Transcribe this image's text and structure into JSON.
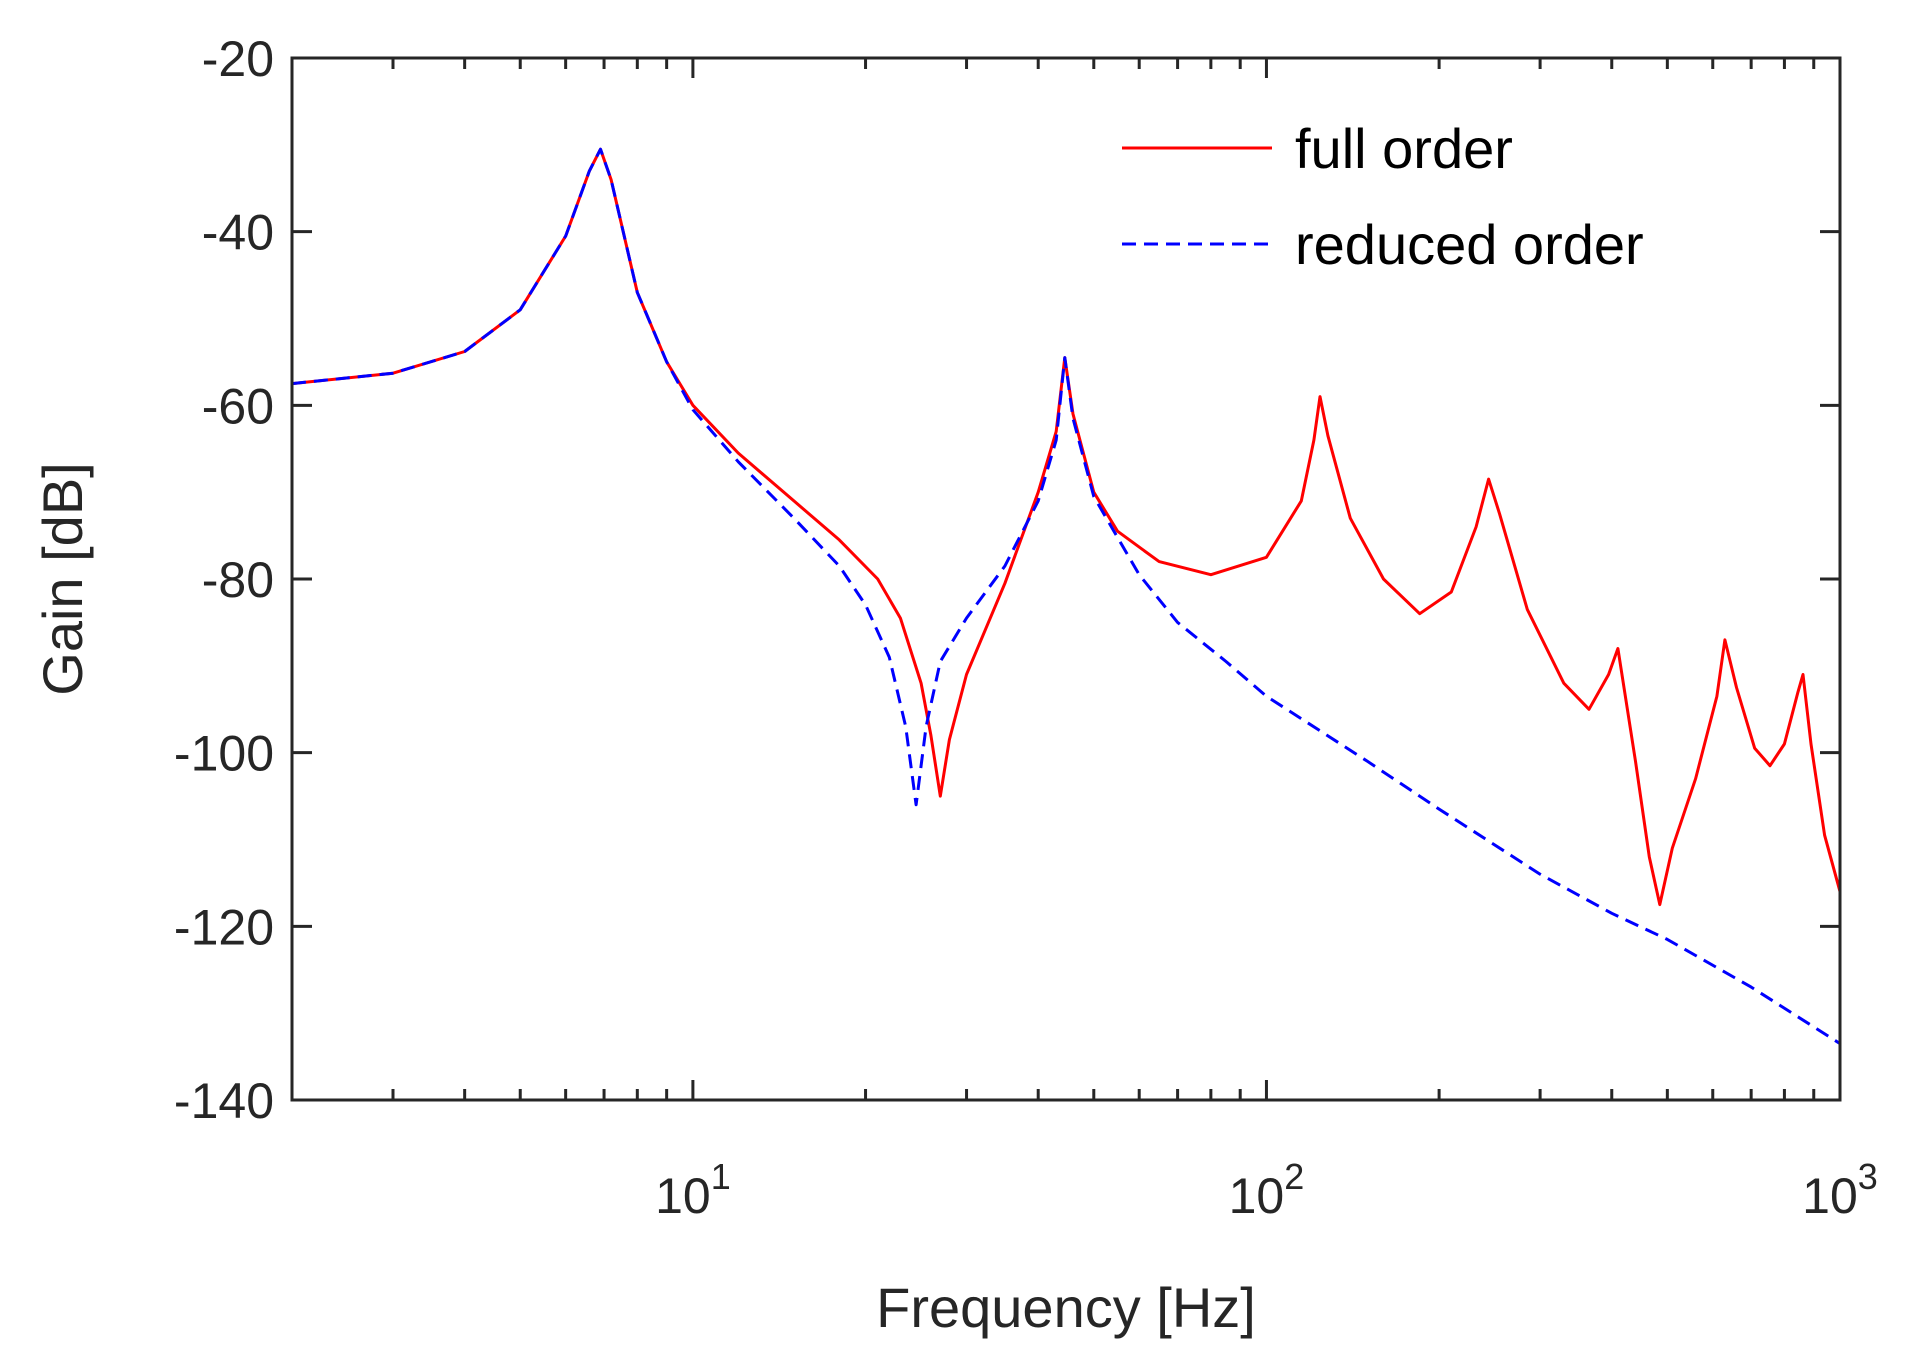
{
  "chart_data": {
    "type": "line",
    "xscale": "log",
    "xlim": [
      2,
      1000
    ],
    "ylim": [
      -140,
      -20
    ],
    "xlabel": "Frequency [Hz]",
    "ylabel": "Gain [dB]",
    "y_ticks": [
      {
        "value": -20,
        "label": "-20"
      },
      {
        "value": -40,
        "label": "-40"
      },
      {
        "value": -60,
        "label": "-60"
      },
      {
        "value": -80,
        "label": "-80"
      },
      {
        "value": -100,
        "label": "-100"
      },
      {
        "value": -120,
        "label": "-120"
      },
      {
        "value": -140,
        "label": "-140"
      }
    ],
    "x_major_ticks": [
      {
        "value": 10,
        "base": "10",
        "exp": "1"
      },
      {
        "value": 100,
        "base": "10",
        "exp": "2"
      },
      {
        "value": 1000,
        "base": "10",
        "exp": "3"
      }
    ],
    "legend_position": "top-right",
    "series": [
      {
        "name": "full order",
        "color": "#ff0000",
        "dash": "solid",
        "points": [
          [
            2.0,
            -57.5
          ],
          [
            3.0,
            -56.3
          ],
          [
            4.0,
            -53.8
          ],
          [
            5.0,
            -49.0
          ],
          [
            6.0,
            -40.5
          ],
          [
            6.6,
            -33.0
          ],
          [
            6.9,
            -30.5
          ],
          [
            7.2,
            -34.0
          ],
          [
            8.0,
            -47.0
          ],
          [
            9.0,
            -55.0
          ],
          [
            10.0,
            -60.0
          ],
          [
            12.0,
            -65.5
          ],
          [
            15.0,
            -71.0
          ],
          [
            18.0,
            -75.5
          ],
          [
            21.0,
            -80.0
          ],
          [
            23.0,
            -84.5
          ],
          [
            25.0,
            -92.0
          ],
          [
            26.0,
            -98.0
          ],
          [
            27.0,
            -105.0
          ],
          [
            28.0,
            -98.5
          ],
          [
            30.0,
            -91.0
          ],
          [
            35.0,
            -80.5
          ],
          [
            40.0,
            -70.0
          ],
          [
            43.0,
            -63.0
          ],
          [
            44.5,
            -54.5
          ],
          [
            46.0,
            -61.0
          ],
          [
            50.0,
            -70.0
          ],
          [
            55.0,
            -74.5
          ],
          [
            65.0,
            -78.0
          ],
          [
            80.0,
            -79.5
          ],
          [
            100.0,
            -77.5
          ],
          [
            115.0,
            -71.0
          ],
          [
            121.0,
            -64.0
          ],
          [
            124.0,
            -59.0
          ],
          [
            128.0,
            -63.5
          ],
          [
            140.0,
            -73.0
          ],
          [
            160.0,
            -80.0
          ],
          [
            185.0,
            -84.0
          ],
          [
            210.0,
            -81.5
          ],
          [
            232.0,
            -74.0
          ],
          [
            244.0,
            -68.5
          ],
          [
            255.0,
            -72.5
          ],
          [
            285.0,
            -83.5
          ],
          [
            330.0,
            -92.0
          ],
          [
            365.0,
            -95.0
          ],
          [
            395.0,
            -91.0
          ],
          [
            410.0,
            -88.0
          ],
          [
            440.0,
            -101.0
          ],
          [
            465.0,
            -112.0
          ],
          [
            485.0,
            -117.5
          ],
          [
            510.0,
            -111.0
          ],
          [
            560.0,
            -103.0
          ],
          [
            610.0,
            -93.5
          ],
          [
            630.0,
            -87.0
          ],
          [
            660.0,
            -92.5
          ],
          [
            710.0,
            -99.5
          ],
          [
            755.0,
            -101.5
          ],
          [
            800.0,
            -99.0
          ],
          [
            845.0,
            -93.0
          ],
          [
            862.0,
            -91.0
          ],
          [
            890.0,
            -99.0
          ],
          [
            940.0,
            -109.5
          ],
          [
            1000.0,
            -116.0
          ]
        ]
      },
      {
        "name": "reduced order",
        "color": "#0000ff",
        "dash": "dashed",
        "points": [
          [
            2.0,
            -57.5
          ],
          [
            3.0,
            -56.3
          ],
          [
            4.0,
            -53.8
          ],
          [
            5.0,
            -49.0
          ],
          [
            6.0,
            -40.5
          ],
          [
            6.6,
            -33.0
          ],
          [
            6.9,
            -30.5
          ],
          [
            7.2,
            -34.0
          ],
          [
            8.0,
            -47.0
          ],
          [
            9.0,
            -55.0
          ],
          [
            10.0,
            -60.5
          ],
          [
            12.0,
            -66.5
          ],
          [
            15.0,
            -73.0
          ],
          [
            18.0,
            -78.5
          ],
          [
            20.0,
            -83.0
          ],
          [
            22.0,
            -89.0
          ],
          [
            23.5,
            -97.0
          ],
          [
            24.5,
            -106.0
          ],
          [
            25.5,
            -97.0
          ],
          [
            27.0,
            -89.5
          ],
          [
            30.0,
            -84.5
          ],
          [
            35.0,
            -78.5
          ],
          [
            40.0,
            -71.0
          ],
          [
            43.0,
            -64.0
          ],
          [
            44.5,
            -54.5
          ],
          [
            46.0,
            -61.5
          ],
          [
            50.0,
            -70.5
          ],
          [
            60.0,
            -79.5
          ],
          [
            70.0,
            -85.0
          ],
          [
            85.0,
            -89.5
          ],
          [
            100.0,
            -93.5
          ],
          [
            150.0,
            -101.0
          ],
          [
            200.0,
            -106.5
          ],
          [
            300.0,
            -114.0
          ],
          [
            400.0,
            -118.5
          ],
          [
            500.0,
            -121.5
          ],
          [
            700.0,
            -127.0
          ],
          [
            1000.0,
            -133.5
          ]
        ]
      }
    ]
  }
}
